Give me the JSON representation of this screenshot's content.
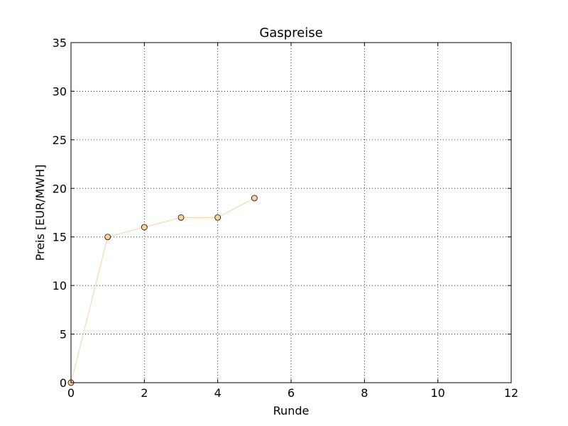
{
  "chart_data": {
    "type": "line",
    "title": "Gaspreise",
    "xlabel": "Runde",
    "ylabel": "Preis [EUR/MWH]",
    "xlim": [
      0,
      12
    ],
    "ylim": [
      0,
      35
    ],
    "xticks": [
      0,
      2,
      4,
      6,
      8,
      10,
      12
    ],
    "yticks": [
      0,
      5,
      10,
      15,
      20,
      25,
      30,
      35
    ],
    "grid": true,
    "series": [
      {
        "x": [
          0,
          1,
          2,
          3,
          4,
          5
        ],
        "y": [
          0,
          15,
          16,
          17,
          17,
          19
        ],
        "color": "#fdd0a2",
        "marker_edge_color": "#000000"
      }
    ]
  }
}
